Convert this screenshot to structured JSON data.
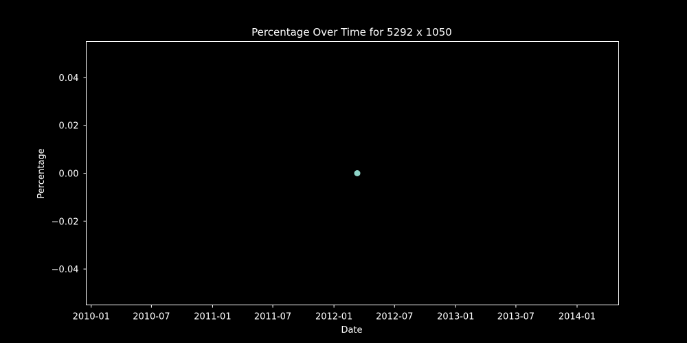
{
  "chart_data": {
    "type": "scatter",
    "title": "Percentage Over Time for 5292 x 1050",
    "xlabel": "Date",
    "ylabel": "Percentage",
    "x_scale": "date",
    "xlim": [
      "2009-12-17",
      "2014-05-06"
    ],
    "ylim": [
      -0.055,
      0.055
    ],
    "x_ticks": [
      "2010-01",
      "2010-07",
      "2011-01",
      "2011-07",
      "2012-01",
      "2012-07",
      "2013-01",
      "2013-07",
      "2014-01"
    ],
    "y_ticks": [
      "0.04",
      "0.02",
      "0.00",
      "−0.02",
      "−0.04"
    ],
    "grid": false,
    "series": [
      {
        "color": "#8dd3c7",
        "points": [
          {
            "x": "2012-03-11",
            "y": 0.0
          }
        ]
      }
    ]
  },
  "colors": {
    "background": "#000000",
    "axes": "#ffffff",
    "text": "#ffffff",
    "marker": "#8dd3c7"
  }
}
